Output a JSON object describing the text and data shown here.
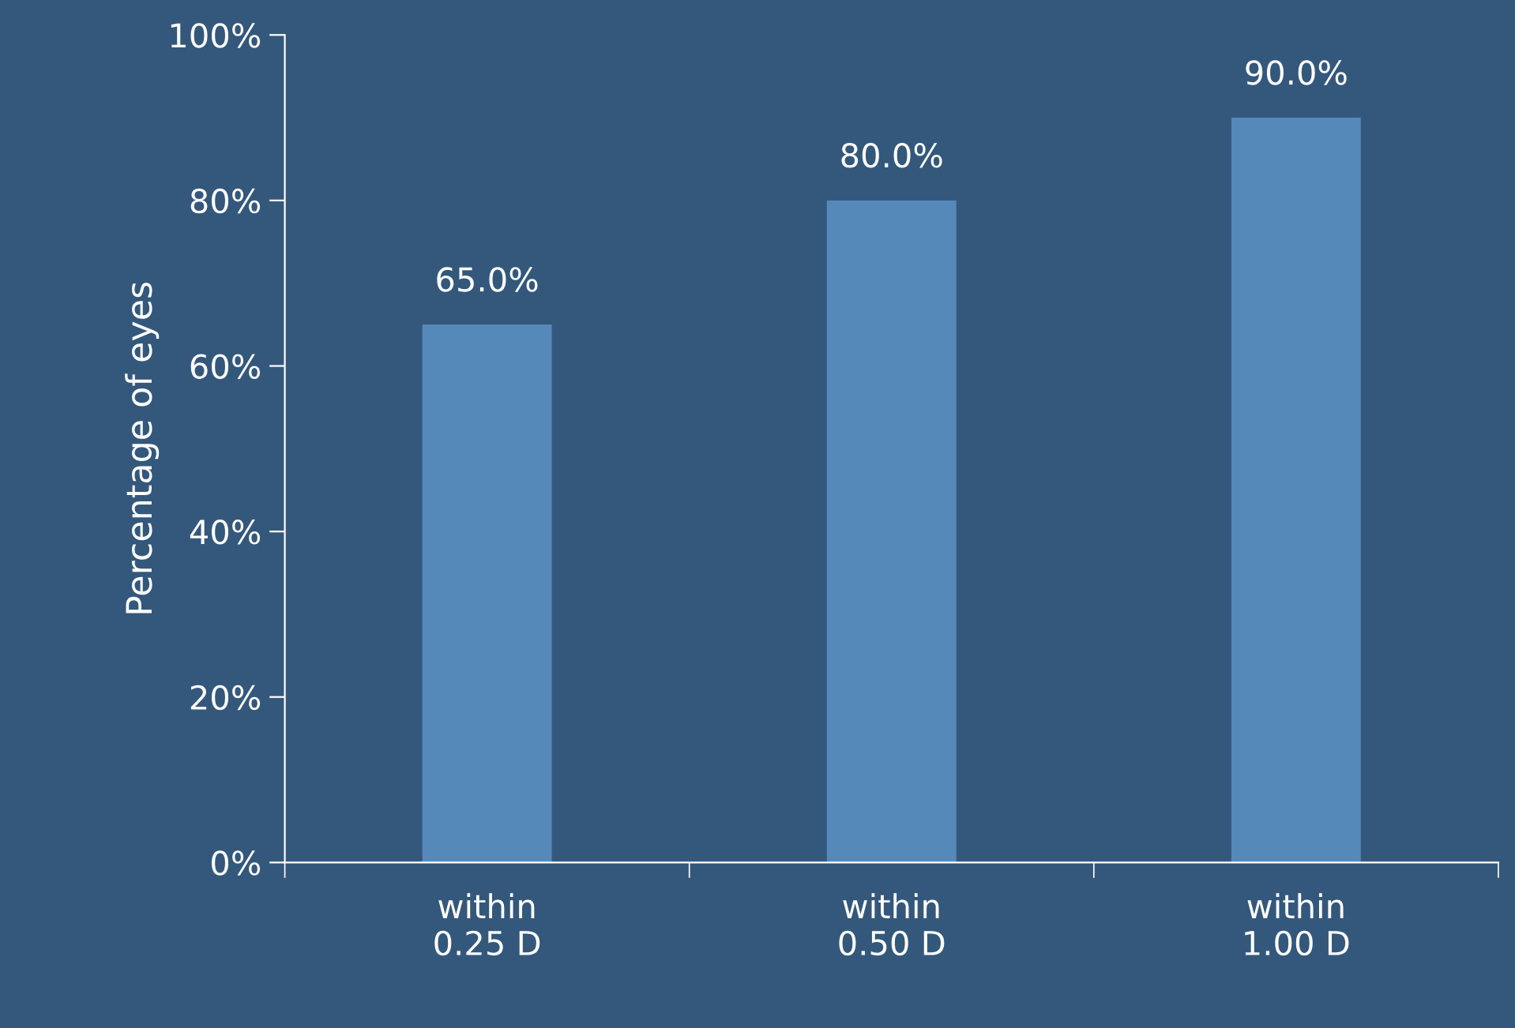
{
  "chart_data": {
    "type": "bar",
    "categories": [
      "within\n0.25 D",
      "within\n0.50 D",
      "within\n1.00 D"
    ],
    "values": [
      65,
      80,
      90
    ],
    "value_labels": [
      "65.0%",
      "80.0%",
      "90.0%"
    ],
    "color": "#5589b9",
    "ylabel": "Percentage of eyes",
    "ylim": [
      0,
      100
    ],
    "yticks": [
      {
        "value": 0,
        "label": "0%"
      },
      {
        "value": 20,
        "label": "20%"
      },
      {
        "value": 40,
        "label": "40%"
      },
      {
        "value": 60,
        "label": "60%"
      },
      {
        "value": 80,
        "label": "80%"
      },
      {
        "value": 100,
        "label": "100%"
      }
    ],
    "grid": false
  }
}
